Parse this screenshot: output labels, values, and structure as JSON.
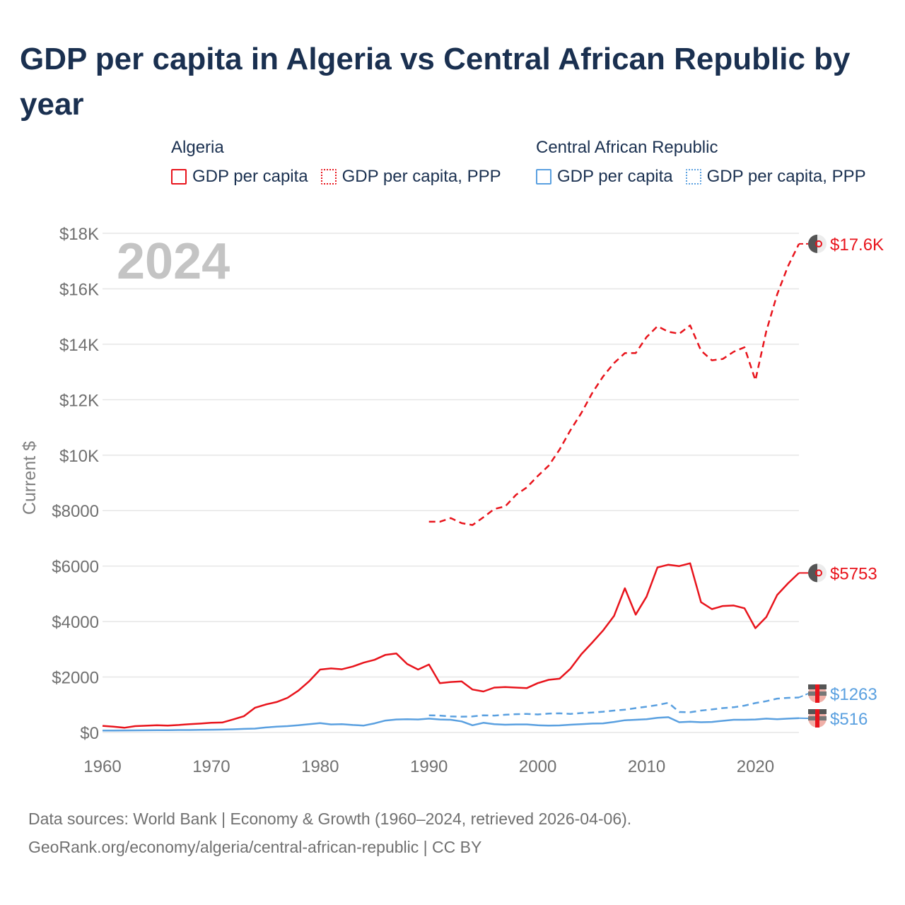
{
  "title": "GDP per capita in Algeria vs Central African Republic by year",
  "legend": {
    "groups": [
      {
        "name": "Algeria",
        "color": "#e8141c",
        "items": [
          "GDP per capita",
          "GDP per capita, PPP"
        ]
      },
      {
        "name": "Central African Republic",
        "color": "#5aa0e0",
        "items": [
          "GDP per capita",
          "GDP per capita, PPP"
        ]
      }
    ]
  },
  "year_overlay": "2024",
  "footer": {
    "line1": "Data sources: World Bank | Economy & Growth (1960–2024, retrieved 2026-04-06).",
    "line2": "GeoRank.org/economy/algeria/central-african-republic | CC BY"
  },
  "chart_data": {
    "type": "line",
    "title": "GDP per capita in Algeria vs Central African Republic by year",
    "xlabel": "",
    "ylabel": "Current $",
    "xlim": [
      1960,
      2024
    ],
    "ylim": [
      0,
      18000
    ],
    "grid": true,
    "x_ticks": [
      "1960",
      "1970",
      "1980",
      "1990",
      "2000",
      "2010",
      "2020"
    ],
    "y_ticks": [
      {
        "value": 0,
        "label": "$0"
      },
      {
        "value": 2000,
        "label": "$2000"
      },
      {
        "value": 4000,
        "label": "$4000"
      },
      {
        "value": 6000,
        "label": "$6000"
      },
      {
        "value": 8000,
        "label": "$8000"
      },
      {
        "value": 10000,
        "label": "$10K"
      },
      {
        "value": 12000,
        "label": "$12K"
      },
      {
        "value": 14000,
        "label": "$14K"
      },
      {
        "value": 16000,
        "label": "$16K"
      },
      {
        "value": 18000,
        "label": "$18K"
      }
    ],
    "series": [
      {
        "name": "Algeria GDP per capita",
        "color": "#e8141c",
        "dashed": false,
        "end_label": "$5753",
        "x": [
          1960,
          1961,
          1962,
          1963,
          1964,
          1965,
          1966,
          1967,
          1968,
          1969,
          1970,
          1971,
          1972,
          1973,
          1974,
          1975,
          1976,
          1977,
          1978,
          1979,
          1980,
          1981,
          1982,
          1983,
          1984,
          1985,
          1986,
          1987,
          1988,
          1989,
          1990,
          1991,
          1992,
          1993,
          1994,
          1995,
          1996,
          1997,
          1998,
          1999,
          2000,
          2001,
          2002,
          2003,
          2004,
          2005,
          2006,
          2007,
          2008,
          2009,
          2010,
          2011,
          2012,
          2013,
          2014,
          2015,
          2016,
          2017,
          2018,
          2019,
          2020,
          2021,
          2022,
          2023,
          2024
        ],
        "values": [
          240,
          210,
          170,
          230,
          245,
          260,
          250,
          270,
          300,
          320,
          350,
          360,
          470,
          590,
          890,
          1010,
          1100,
          1250,
          1510,
          1850,
          2270,
          2310,
          2280,
          2380,
          2520,
          2620,
          2800,
          2850,
          2470,
          2270,
          2450,
          1780,
          1820,
          1840,
          1550,
          1480,
          1620,
          1640,
          1620,
          1600,
          1780,
          1900,
          1940,
          2300,
          2820,
          3240,
          3680,
          4200,
          5200,
          4250,
          4900,
          5950,
          6050,
          6000,
          6100,
          4700,
          4450,
          4560,
          4580,
          4480,
          3760,
          4160,
          4960,
          5380,
          5753
        ]
      },
      {
        "name": "Algeria GDP per capita, PPP",
        "color": "#e8141c",
        "dashed": true,
        "end_label": "$17.6K",
        "x": [
          1990,
          1991,
          1992,
          1993,
          1994,
          1995,
          1996,
          1997,
          1998,
          1999,
          2000,
          2001,
          2002,
          2003,
          2004,
          2005,
          2006,
          2007,
          2008,
          2009,
          2010,
          2011,
          2012,
          2013,
          2014,
          2015,
          2016,
          2017,
          2018,
          2019,
          2020,
          2021,
          2022,
          2023,
          2024
        ],
        "values": [
          7600,
          7600,
          7730,
          7550,
          7480,
          7760,
          8060,
          8150,
          8570,
          8840,
          9250,
          9620,
          10200,
          10900,
          11520,
          12240,
          12840,
          13320,
          13680,
          13680,
          14260,
          14650,
          14450,
          14380,
          14680,
          13770,
          13420,
          13470,
          13730,
          13890,
          12700,
          14470,
          15800,
          16820,
          17620
        ]
      },
      {
        "name": "Central African Republic GDP per capita",
        "color": "#5aa0e0",
        "dashed": false,
        "end_label": "$516",
        "x": [
          1960,
          1961,
          1962,
          1963,
          1964,
          1965,
          1966,
          1967,
          1968,
          1969,
          1970,
          1971,
          1972,
          1973,
          1974,
          1975,
          1976,
          1977,
          1978,
          1979,
          1980,
          1981,
          1982,
          1983,
          1984,
          1985,
          1986,
          1987,
          1988,
          1989,
          1990,
          1991,
          1992,
          1993,
          1994,
          1995,
          1996,
          1997,
          1998,
          1999,
          2000,
          2001,
          2002,
          2003,
          2004,
          2005,
          2006,
          2007,
          2008,
          2009,
          2010,
          2011,
          2012,
          2013,
          2014,
          2015,
          2016,
          2017,
          2018,
          2019,
          2020,
          2021,
          2022,
          2023,
          2024
        ],
        "values": [
          70,
          72,
          74,
          76,
          80,
          82,
          85,
          88,
          90,
          95,
          100,
          105,
          115,
          130,
          140,
          180,
          210,
          230,
          260,
          300,
          340,
          290,
          300,
          270,
          250,
          330,
          430,
          470,
          480,
          470,
          500,
          470,
          460,
          400,
          260,
          350,
          300,
          280,
          290,
          290,
          260,
          250,
          255,
          280,
          300,
          320,
          330,
          380,
          440,
          460,
          480,
          530,
          550,
          370,
          390,
          370,
          380,
          420,
          460,
          460,
          470,
          500,
          480,
          500,
          516
        ]
      },
      {
        "name": "Central African Republic GDP per capita, PPP",
        "color": "#5aa0e0",
        "dashed": true,
        "end_label": "$1263",
        "x": [
          1990,
          1991,
          1992,
          1993,
          1994,
          1995,
          1996,
          1997,
          1998,
          1999,
          2000,
          2001,
          2002,
          2003,
          2004,
          2005,
          2006,
          2007,
          2008,
          2009,
          2010,
          2011,
          2012,
          2013,
          2014,
          2015,
          2016,
          2017,
          2018,
          2019,
          2020,
          2021,
          2022,
          2023,
          2024
        ],
        "values": [
          620,
          610,
          580,
          570,
          580,
          620,
          610,
          640,
          660,
          670,
          650,
          680,
          690,
          670,
          700,
          720,
          750,
          790,
          820,
          880,
          930,
          990,
          1070,
          740,
          730,
          790,
          830,
          880,
          910,
          970,
          1060,
          1130,
          1220,
          1250,
          1263
        ]
      }
    ]
  }
}
